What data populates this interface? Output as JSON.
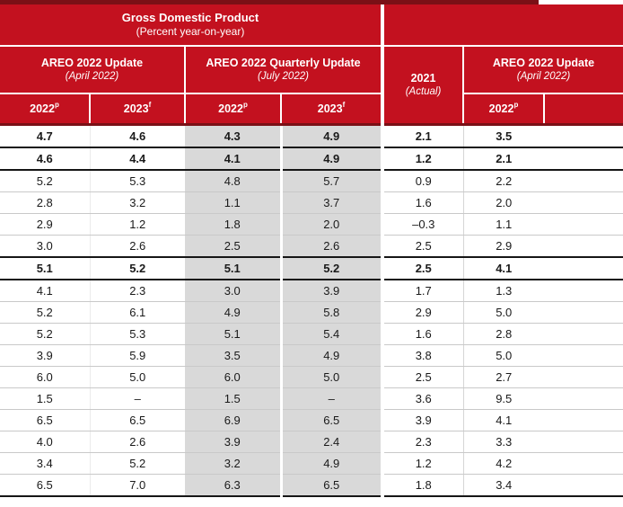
{
  "header": {
    "title": "Gross Domestic Product",
    "subtitle": "(Percent year-on-year)",
    "groups": [
      {
        "title": "AREO 2022 Update",
        "subtitle": "(April 2022)"
      },
      {
        "title": "AREO 2022 Quarterly Update",
        "subtitle": "(July 2022)"
      }
    ],
    "actual_col": {
      "title": "2021",
      "subtitle": "(Actual)"
    },
    "next_group": {
      "title": "AREO 2022 Update",
      "subtitle": "(April 2022)"
    },
    "subcols": [
      {
        "year": "2022",
        "sup": "p"
      },
      {
        "year": "2023",
        "sup": "f"
      },
      {
        "year": "2022",
        "sup": "p"
      },
      {
        "year": "2023",
        "sup": "f"
      }
    ],
    "next_subcol": {
      "year": "2022",
      "sup": "p"
    }
  },
  "colors": {
    "brand_red": "#c3111f",
    "dark_rule": "#7a1016",
    "highlight_gray": "#d9d9d9",
    "thick_line": "#161616",
    "thin_line": "#c9c9c9",
    "text": "#1a1a1a",
    "header_text": "#ffffff"
  },
  "table": {
    "column_keys": [
      "areo_apr_2022p",
      "areo_apr_2023f",
      "areo_jul_2022p",
      "areo_jul_2023f",
      "actual_2021",
      "next_2022p"
    ],
    "rows": [
      {
        "bold": true,
        "rule_below": true,
        "cells": [
          "4.7",
          "4.6",
          "4.3",
          "4.9",
          "2.1",
          "3.5"
        ]
      },
      {
        "bold": true,
        "rule_below": true,
        "cells": [
          "4.6",
          "4.4",
          "4.1",
          "4.9",
          "1.2",
          "2.1"
        ]
      },
      {
        "bold": false,
        "rule_below": false,
        "cells": [
          "5.2",
          "5.3",
          "4.8",
          "5.7",
          "0.9",
          "2.2"
        ]
      },
      {
        "bold": false,
        "rule_below": false,
        "cells": [
          "2.8",
          "3.2",
          "1.1",
          "3.7",
          "1.6",
          "2.0"
        ]
      },
      {
        "bold": false,
        "rule_below": false,
        "cells": [
          "2.9",
          "1.2",
          "1.8",
          "2.0",
          "–0.3",
          "1.1"
        ]
      },
      {
        "bold": false,
        "rule_below": true,
        "cells": [
          "3.0",
          "2.6",
          "2.5",
          "2.6",
          "2.5",
          "2.9"
        ]
      },
      {
        "bold": true,
        "rule_below": true,
        "cells": [
          "5.1",
          "5.2",
          "5.1",
          "5.2",
          "2.5",
          "4.1"
        ]
      },
      {
        "bold": false,
        "rule_below": false,
        "cells": [
          "4.1",
          "2.3",
          "3.0",
          "3.9",
          "1.7",
          "1.3"
        ]
      },
      {
        "bold": false,
        "rule_below": false,
        "cells": [
          "5.2",
          "6.1",
          "4.9",
          "5.8",
          "2.9",
          "5.0"
        ]
      },
      {
        "bold": false,
        "rule_below": false,
        "cells": [
          "5.2",
          "5.3",
          "5.1",
          "5.4",
          "1.6",
          "2.8"
        ]
      },
      {
        "bold": false,
        "rule_below": false,
        "cells": [
          "3.9",
          "5.9",
          "3.5",
          "4.9",
          "3.8",
          "5.0"
        ]
      },
      {
        "bold": false,
        "rule_below": false,
        "cells": [
          "6.0",
          "5.0",
          "6.0",
          "5.0",
          "2.5",
          "2.7"
        ]
      },
      {
        "bold": false,
        "rule_below": false,
        "cells": [
          "1.5",
          "–",
          "1.5",
          "–",
          "3.6",
          "9.5"
        ]
      },
      {
        "bold": false,
        "rule_below": false,
        "cells": [
          "6.5",
          "6.5",
          "6.9",
          "6.5",
          "3.9",
          "4.1"
        ]
      },
      {
        "bold": false,
        "rule_below": false,
        "cells": [
          "4.0",
          "2.6",
          "3.9",
          "2.4",
          "2.3",
          "3.3"
        ]
      },
      {
        "bold": false,
        "rule_below": false,
        "cells": [
          "3.4",
          "5.2",
          "3.2",
          "4.9",
          "1.2",
          "4.2"
        ]
      },
      {
        "bold": false,
        "rule_below": true,
        "cells": [
          "6.5",
          "7.0",
          "6.3",
          "6.5",
          "1.8",
          "3.4"
        ]
      }
    ]
  }
}
